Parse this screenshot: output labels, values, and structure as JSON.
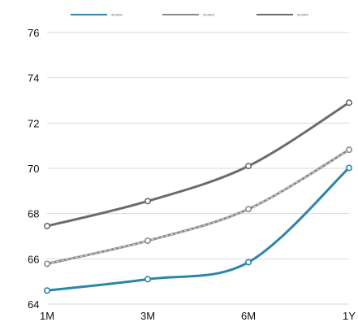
{
  "chart_data": {
    "type": "line",
    "categories": [
      "1M",
      "3M",
      "6M",
      "1Y"
    ],
    "series": [
      {
        "name": "20.06%",
        "color": "#2b86a8",
        "values": [
          64.6,
          65.1,
          65.85,
          70.02
        ]
      },
      {
        "name": "20.06%",
        "color": "#8a8a8a",
        "dashed": true,
        "values": [
          65.78,
          66.8,
          68.2,
          70.82
        ]
      },
      {
        "name": "20.06%",
        "color": "#6b6b6b",
        "values": [
          67.45,
          68.55,
          70.1,
          72.9
        ]
      }
    ],
    "yticks": [
      64,
      66,
      68,
      70,
      72,
      74,
      76
    ],
    "ylim": [
      64,
      76
    ],
    "grid": "horizontal",
    "legend": "top",
    "title": "",
    "xlabel": "",
    "ylabel": ""
  }
}
